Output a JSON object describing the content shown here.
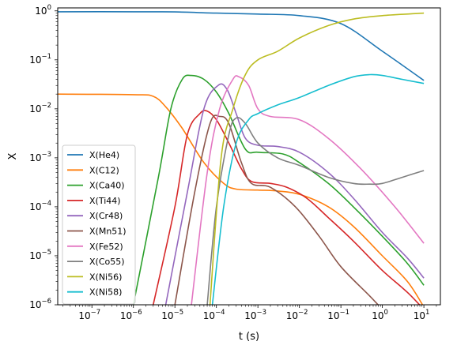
{
  "chart_data": {
    "type": "line",
    "xlabel": "t (s)",
    "ylabel": "X",
    "xscale": "log",
    "yscale": "log",
    "xlim": [
      1.5e-08,
      25
    ],
    "ylim": [
      1e-06,
      1.15
    ],
    "grid": false,
    "legend_position": "lower-left",
    "x_ticks": [
      {
        "value": 1e-07,
        "base": "10",
        "exp": "−7"
      },
      {
        "value": 1e-06,
        "base": "10",
        "exp": "−6"
      },
      {
        "value": 1e-05,
        "base": "10",
        "exp": "−5"
      },
      {
        "value": 0.0001,
        "base": "10",
        "exp": "−4"
      },
      {
        "value": 0.001,
        "base": "10",
        "exp": "−3"
      },
      {
        "value": 0.01,
        "base": "10",
        "exp": "−2"
      },
      {
        "value": 0.1,
        "base": "10",
        "exp": "−1"
      },
      {
        "value": 1,
        "base": "10",
        "exp": "0"
      },
      {
        "value": 10,
        "base": "10",
        "exp": "1"
      }
    ],
    "y_ticks": [
      {
        "value": 1e-06,
        "base": "10",
        "exp": "−6"
      },
      {
        "value": 1e-05,
        "base": "10",
        "exp": "−5"
      },
      {
        "value": 0.0001,
        "base": "10",
        "exp": "−4"
      },
      {
        "value": 0.001,
        "base": "10",
        "exp": "−3"
      },
      {
        "value": 0.01,
        "base": "10",
        "exp": "−2"
      },
      {
        "value": 0.1,
        "base": "10",
        "exp": "−1"
      },
      {
        "value": 1,
        "base": "10",
        "exp": "0"
      }
    ],
    "series": [
      {
        "name": "X(He4)",
        "color": "#1f77b4",
        "points": [
          [
            1.5e-08,
            0.96
          ],
          [
            1e-06,
            0.96
          ],
          [
            1e-05,
            0.95
          ],
          [
            0.0001,
            0.9
          ],
          [
            0.001,
            0.86
          ],
          [
            0.01,
            0.8
          ],
          [
            0.1,
            0.55
          ],
          [
            1,
            0.15
          ],
          [
            10,
            0.038
          ]
        ]
      },
      {
        "name": "X(C12)",
        "color": "#ff7f0e",
        "points": [
          [
            1.5e-08,
            0.02
          ],
          [
            1e-06,
            0.0195
          ],
          [
            3e-06,
            0.018
          ],
          [
            6e-06,
            0.011
          ],
          [
            1.5e-05,
            0.004
          ],
          [
            5e-05,
            0.0008
          ],
          [
            0.00015,
            0.0003
          ],
          [
            0.0003,
            0.00023
          ],
          [
            0.001,
            0.00022
          ],
          [
            0.003,
            0.00021
          ],
          [
            0.01,
            0.00018
          ],
          [
            0.05,
            0.0001
          ],
          [
            0.2,
            4e-05
          ],
          [
            1,
            1e-05
          ],
          [
            4,
            3e-06
          ],
          [
            10,
            9e-07
          ]
        ]
      },
      {
        "name": "X(Ca40)",
        "color": "#2ca02c",
        "points": [
          [
            1e-06,
            1e-06
          ],
          [
            4e-06,
            0.0004
          ],
          [
            8e-06,
            0.01
          ],
          [
            1.5e-05,
            0.04
          ],
          [
            2.5e-05,
            0.048
          ],
          [
            5e-05,
            0.04
          ],
          [
            0.0001,
            0.022
          ],
          [
            0.0002,
            0.008
          ],
          [
            0.0005,
            0.0015
          ],
          [
            0.001,
            0.0013
          ],
          [
            0.004,
            0.0012
          ],
          [
            0.01,
            0.0008
          ],
          [
            0.05,
            0.0003
          ],
          [
            0.2,
            0.0001
          ],
          [
            1,
            2.5e-05
          ],
          [
            4,
            7e-06
          ],
          [
            10,
            2.5e-06
          ]
        ]
      },
      {
        "name": "X(Ti44)",
        "color": "#d62728",
        "points": [
          [
            3e-06,
            1e-06
          ],
          [
            1e-05,
            0.0001
          ],
          [
            2e-05,
            0.003
          ],
          [
            4e-05,
            0.008
          ],
          [
            6e-05,
            0.009
          ],
          [
            0.0001,
            0.006
          ],
          [
            0.0002,
            0.002
          ],
          [
            0.0004,
            0.0006
          ],
          [
            0.0007,
            0.00033
          ],
          [
            0.002,
            0.0003
          ],
          [
            0.005,
            0.00025
          ],
          [
            0.015,
            0.00015
          ],
          [
            0.05,
            6e-05
          ],
          [
            0.2,
            2e-05
          ],
          [
            1,
            5e-06
          ],
          [
            4,
            1.8e-06
          ],
          [
            10,
            8e-07
          ]
        ]
      },
      {
        "name": "X(Cr48)",
        "color": "#9467bd",
        "points": [
          [
            6e-06,
            1e-06
          ],
          [
            2e-05,
            0.0002
          ],
          [
            5e-05,
            0.01
          ],
          [
            0.00011,
            0.03
          ],
          [
            0.00018,
            0.025
          ],
          [
            0.0003,
            0.008
          ],
          [
            0.0005,
            0.0025
          ],
          [
            0.001,
            0.0018
          ],
          [
            0.003,
            0.0017
          ],
          [
            0.01,
            0.0013
          ],
          [
            0.05,
            0.0005
          ],
          [
            0.2,
            0.00015
          ],
          [
            1,
            3e-05
          ],
          [
            4,
            9e-06
          ],
          [
            10,
            3.5e-06
          ]
        ]
      },
      {
        "name": "X(Mn51)",
        "color": "#8c564b",
        "points": [
          [
            1e-05,
            1e-06
          ],
          [
            3e-05,
            0.0002
          ],
          [
            7e-05,
            0.005
          ],
          [
            0.00012,
            0.007
          ],
          [
            0.0002,
            0.005
          ],
          [
            0.0004,
            0.0008
          ],
          [
            0.0007,
            0.0003
          ],
          [
            0.002,
            0.00025
          ],
          [
            0.008,
            0.0001
          ],
          [
            0.03,
            2.5e-05
          ],
          [
            0.1,
            6e-06
          ],
          [
            0.5,
            1.5e-06
          ],
          [
            1,
            8e-07
          ]
        ]
      },
      {
        "name": "X(Fe52)",
        "color": "#e377c2",
        "points": [
          [
            2.5e-05,
            1e-06
          ],
          [
            6e-05,
            0.0005
          ],
          [
            0.00012,
            0.01
          ],
          [
            0.00025,
            0.04
          ],
          [
            0.00035,
            0.045
          ],
          [
            0.0006,
            0.03
          ],
          [
            0.001,
            0.01
          ],
          [
            0.002,
            0.007
          ],
          [
            0.01,
            0.006
          ],
          [
            0.05,
            0.0025
          ],
          [
            0.3,
            0.0006
          ],
          [
            2,
            0.0001
          ],
          [
            10,
            1.8e-05
          ]
        ]
      },
      {
        "name": "X(Co55)",
        "color": "#7f7f7f",
        "points": [
          [
            6e-05,
            1e-06
          ],
          [
            0.0001,
            0.0001
          ],
          [
            0.0002,
            0.003
          ],
          [
            0.0003,
            0.0065
          ],
          [
            0.0005,
            0.005
          ],
          [
            0.001,
            0.002
          ],
          [
            0.003,
            0.001
          ],
          [
            0.01,
            0.0007
          ],
          [
            0.05,
            0.0004
          ],
          [
            0.2,
            0.0003
          ],
          [
            0.5,
            0.00029
          ],
          [
            1,
            0.0003
          ],
          [
            3,
            0.0004
          ],
          [
            10,
            0.00055
          ]
        ]
      },
      {
        "name": "X(Ni56)",
        "color": "#bcbd22",
        "points": [
          [
            7e-05,
            1e-06
          ],
          [
            0.00013,
            0.001
          ],
          [
            0.00025,
            0.01
          ],
          [
            0.0005,
            0.05
          ],
          [
            0.001,
            0.1
          ],
          [
            0.003,
            0.15
          ],
          [
            0.01,
            0.28
          ],
          [
            0.05,
            0.5
          ],
          [
            0.2,
            0.68
          ],
          [
            1,
            0.8
          ],
          [
            10,
            0.9
          ]
        ]
      },
      {
        "name": "X(Ni58)",
        "color": "#17becf",
        "points": [
          [
            8e-05,
            1e-06
          ],
          [
            0.00015,
            0.0001
          ],
          [
            0.0003,
            0.002
          ],
          [
            0.0006,
            0.006
          ],
          [
            0.001,
            0.008
          ],
          [
            0.003,
            0.012
          ],
          [
            0.01,
            0.017
          ],
          [
            0.05,
            0.03
          ],
          [
            0.2,
            0.045
          ],
          [
            0.5,
            0.05
          ],
          [
            1,
            0.048
          ],
          [
            3,
            0.04
          ],
          [
            10,
            0.033
          ]
        ]
      }
    ]
  }
}
